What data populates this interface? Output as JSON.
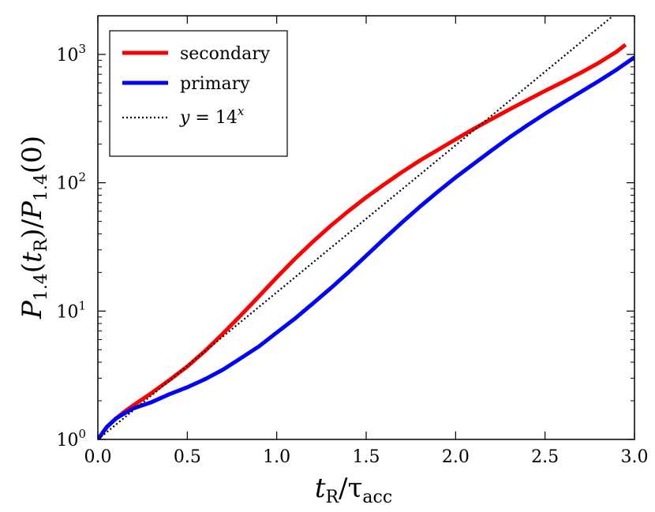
{
  "chart_data": {
    "type": "line",
    "xlabel": "t_R/τ_acc",
    "ylabel": "P_1.4(t_R)/P_1.4(0)",
    "xlim": [
      0.0,
      3.0
    ],
    "ylim": [
      1,
      2000
    ],
    "yscale": "log",
    "x_ticks": [
      {
        "value": 0.0,
        "label": "0.0"
      },
      {
        "value": 0.5,
        "label": "0.5"
      },
      {
        "value": 1.0,
        "label": "1.0"
      },
      {
        "value": 1.5,
        "label": "1.5"
      },
      {
        "value": 2.0,
        "label": "2.0"
      },
      {
        "value": 2.5,
        "label": "2.5"
      },
      {
        "value": 3.0,
        "label": "3.0"
      }
    ],
    "y_ticks": [
      {
        "value": 1,
        "base": "10",
        "exp": "0"
      },
      {
        "value": 10,
        "base": "10",
        "exp": "1"
      },
      {
        "value": 100,
        "base": "10",
        "exp": "2"
      },
      {
        "value": 1000,
        "base": "10",
        "exp": "3"
      }
    ],
    "legend_position": "top-left",
    "series": [
      {
        "name": "secondary",
        "color": "#ff0000",
        "style": "solid",
        "x": [
          0.0,
          0.05,
          0.1,
          0.15,
          0.2,
          0.3,
          0.4,
          0.5,
          0.6,
          0.7,
          0.8,
          0.9,
          1.0,
          1.1,
          1.2,
          1.3,
          1.4,
          1.5,
          1.6,
          1.7,
          1.8,
          1.9,
          2.0,
          2.1,
          2.2,
          2.3,
          2.4,
          2.5,
          2.6,
          2.7,
          2.8,
          2.9,
          2.95
        ],
        "y": [
          1.0,
          1.25,
          1.45,
          1.65,
          1.85,
          2.3,
          2.9,
          3.7,
          4.9,
          6.7,
          9.3,
          13.0,
          18.3,
          25.4,
          34.5,
          46.0,
          60.0,
          77.0,
          97.0,
          121.0,
          149.0,
          180.0,
          218.0,
          262.0,
          313.0,
          372.0,
          440.0,
          520.0,
          610.0,
          720.0,
          860.0,
          1050.0,
          1190.0
        ]
      },
      {
        "name": "primary",
        "color": "#0000ff",
        "style": "solid",
        "x": [
          0.0,
          0.05,
          0.1,
          0.15,
          0.2,
          0.3,
          0.4,
          0.5,
          0.6,
          0.7,
          0.8,
          0.9,
          1.0,
          1.1,
          1.2,
          1.3,
          1.4,
          1.5,
          1.6,
          1.7,
          1.8,
          1.9,
          2.0,
          2.1,
          2.2,
          2.3,
          2.4,
          2.5,
          2.6,
          2.7,
          2.8,
          2.9,
          3.0
        ],
        "y": [
          1.0,
          1.25,
          1.45,
          1.6,
          1.75,
          1.95,
          2.25,
          2.55,
          2.95,
          3.5,
          4.3,
          5.3,
          6.8,
          8.7,
          11.4,
          15.0,
          20.0,
          27.0,
          36.5,
          49.0,
          65.0,
          85.0,
          110.0,
          140.0,
          178.0,
          225.0,
          280.0,
          345.0,
          420.0,
          510.0,
          620.0,
          760.0,
          950.0
        ]
      },
      {
        "name": "y = 14^x",
        "color": "#000000",
        "style": "dotted",
        "x": [
          0.0,
          0.25,
          0.5,
          0.75,
          1.0,
          1.25,
          1.5,
          1.75,
          2.0,
          2.25,
          2.5,
          2.75,
          2.88
        ],
        "y": [
          1.0,
          1.93,
          3.74,
          7.24,
          14.0,
          27.1,
          52.4,
          101.3,
          196.0,
          379.3,
          733.4,
          1419.0,
          1998.0
        ]
      }
    ],
    "legend": [
      {
        "label": "secondary",
        "color": "#ff0000",
        "style": "solid"
      },
      {
        "label": "primary",
        "color": "#0000ff",
        "style": "solid"
      },
      {
        "label_prefix": "y",
        "label_eq": " = 14",
        "label_sup": "x",
        "color": "#000000",
        "style": "dotted"
      }
    ]
  }
}
